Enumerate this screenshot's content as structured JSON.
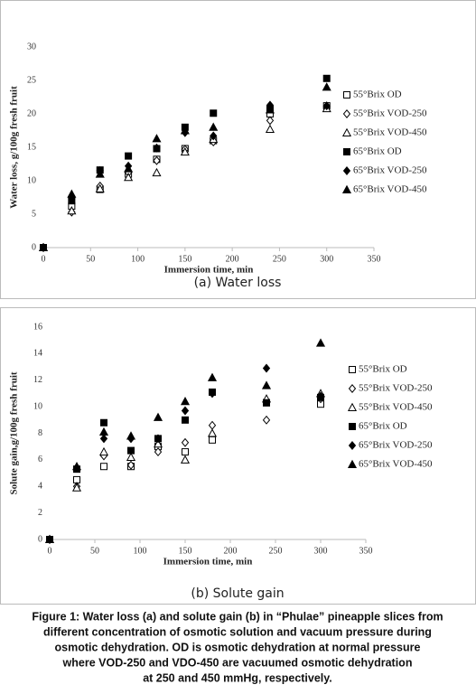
{
  "chart_data": [
    {
      "type": "scatter",
      "caption": "(a) Water loss",
      "x_label": "Immersion time, min",
      "y_label": "Water loss, g/100g fresh fruit",
      "x": [
        0,
        30,
        60,
        90,
        120,
        150,
        180,
        240,
        300
      ],
      "xlim": [
        0,
        350
      ],
      "xticks": [
        0,
        50,
        100,
        150,
        200,
        250,
        300,
        350
      ],
      "ylim": [
        0,
        30
      ],
      "yticks": [
        0,
        5,
        10,
        15,
        20,
        25,
        30
      ],
      "series": [
        {
          "name": "55°Brix OD",
          "color": "#000000",
          "marker": "square",
          "filled": false,
          "values": [
            0,
            6.2,
            8.7,
            11.0,
            13.2,
            14.8,
            16.0,
            20.0,
            21.2
          ]
        },
        {
          "name": "55°Brix VOD-250",
          "color": "#000000",
          "marker": "diamond",
          "filled": false,
          "values": [
            0,
            5.3,
            9.2,
            11.2,
            13.0,
            14.7,
            15.8,
            19.0,
            21.0
          ]
        },
        {
          "name": "55°Brix VOD-450",
          "color": "#000000",
          "marker": "triangle",
          "filled": false,
          "values": [
            0,
            5.5,
            8.8,
            10.5,
            11.2,
            14.3,
            16.2,
            17.7,
            20.8
          ]
        },
        {
          "name": "65°Brix OD",
          "color": "#000000",
          "marker": "square",
          "filled": true,
          "values": [
            0,
            7.0,
            11.6,
            13.7,
            14.8,
            18.0,
            20.1,
            20.7,
            25.3
          ]
        },
        {
          "name": "65°Brix VOD-250",
          "color": "#000000",
          "marker": "diamond",
          "filled": true,
          "values": [
            0,
            7.4,
            11.5,
            12.2,
            14.9,
            17.2,
            16.7,
            21.3,
            21.2
          ]
        },
        {
          "name": "65°Brix VOD-450",
          "color": "#000000",
          "marker": "triangle",
          "filled": true,
          "values": [
            0,
            8.0,
            11.0,
            11.8,
            16.3,
            17.5,
            18.0,
            20.6,
            24.0
          ]
        }
      ]
    },
    {
      "type": "scatter",
      "caption": "(b) Solute gain",
      "x_label": "Immersion time, min",
      "y_label": "Solute gain,g/100g fresh fruit",
      "x": [
        0,
        30,
        60,
        90,
        120,
        150,
        180,
        240,
        300
      ],
      "xlim": [
        0,
        350
      ],
      "xticks": [
        0,
        50,
        100,
        150,
        200,
        250,
        300,
        350
      ],
      "ylim": [
        0,
        16
      ],
      "yticks": [
        0,
        2,
        4,
        6,
        8,
        10,
        12,
        14,
        16
      ],
      "series": [
        {
          "name": "55°Brix OD",
          "color": "#000000",
          "marker": "square",
          "filled": false,
          "values": [
            0,
            4.5,
            5.5,
            5.5,
            7.0,
            6.6,
            7.5,
            10.3,
            10.2
          ]
        },
        {
          "name": "55°Brix VOD-250",
          "color": "#000000",
          "marker": "diamond",
          "filled": false,
          "values": [
            0,
            4.0,
            6.3,
            5.6,
            6.6,
            7.3,
            8.6,
            9.0,
            10.6
          ]
        },
        {
          "name": "55°Brix VOD-450",
          "color": "#000000",
          "marker": "triangle",
          "filled": false,
          "values": [
            0,
            3.9,
            6.6,
            6.2,
            7.2,
            6.0,
            8.0,
            10.6,
            11.0
          ]
        },
        {
          "name": "65°Brix OD",
          "color": "#000000",
          "marker": "square",
          "filled": true,
          "values": [
            0,
            5.3,
            8.8,
            6.7,
            7.6,
            9.0,
            11.1,
            10.3,
            10.7
          ]
        },
        {
          "name": "65°Brix VOD-250",
          "color": "#000000",
          "marker": "diamond",
          "filled": true,
          "values": [
            0,
            5.4,
            7.6,
            7.6,
            7.6,
            9.7,
            11.0,
            12.9,
            10.8
          ]
        },
        {
          "name": "65°Brix VOD-450",
          "color": "#000000",
          "marker": "triangle",
          "filled": true,
          "values": [
            0,
            5.5,
            8.1,
            7.8,
            9.2,
            10.4,
            12.2,
            11.6,
            14.8
          ]
        }
      ]
    }
  ],
  "figure_caption": [
    "Figure 1: Water loss (a) and solute gain (b) in “Phulae” pineapple slices from",
    "different concentration of osmotic solution and vacuum pressure during",
    "osmotic dehydration. OD is osmotic dehydration at normal pressure",
    "where VOD-250 and VDO-450 are vacuumed osmotic dehydration",
    "at 250 and 450 mmHg, respectively."
  ]
}
